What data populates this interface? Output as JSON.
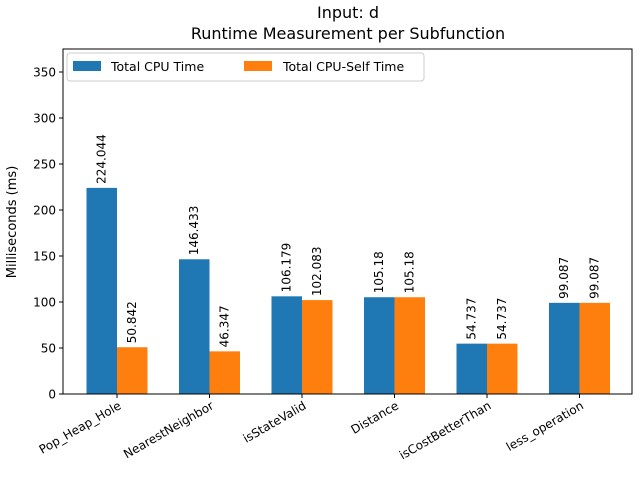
{
  "chart_data": {
    "type": "bar",
    "title": "Input: d",
    "subtitle": "Runtime Measurement per Subfunction",
    "xlabel": "",
    "ylabel": "Milliseconds (ms)",
    "ylim": [
      0,
      375
    ],
    "yticks": [
      0,
      50,
      100,
      150,
      200,
      250,
      300,
      350
    ],
    "grid": false,
    "legend_position": "top-left",
    "categories": [
      "Pop_Heap_Hole",
      "NearestNeighbor",
      "isStateValid",
      "Distance",
      "isCostBetterThan",
      "less_operation"
    ],
    "series": [
      {
        "name": "Total CPU Time",
        "color": "#1f77b4",
        "values": [
          224.044,
          146.433,
          106.179,
          105.18,
          54.737,
          99.087
        ]
      },
      {
        "name": "Total CPU-Self Time",
        "color": "#ff7f0e",
        "values": [
          50.842,
          46.347,
          102.083,
          105.18,
          54.737,
          99.087
        ]
      }
    ]
  }
}
